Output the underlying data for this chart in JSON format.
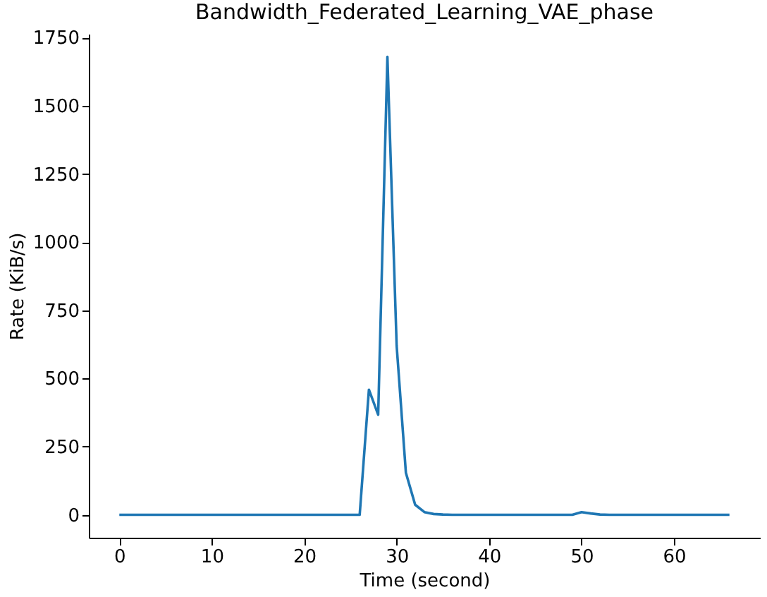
{
  "chart_data": {
    "type": "line",
    "title": "Bandwidth_Federated_Learning_VAE_phase",
    "xlabel": "Time (second)",
    "ylabel": "Rate (KiB/s)",
    "x": [
      0,
      5,
      10,
      15,
      20,
      25,
      26,
      27,
      28,
      29,
      30,
      31,
      32,
      33,
      34,
      35,
      36,
      40,
      45,
      49,
      50,
      51,
      52,
      53,
      55,
      60,
      66
    ],
    "series": [
      {
        "color": "#1f77b4",
        "values": [
          0,
          0,
          0,
          0,
          0,
          0,
          0,
          459,
          367,
          1680,
          620,
          154,
          37,
          10,
          3,
          1,
          0,
          0,
          0,
          0,
          10,
          5,
          1,
          0,
          0,
          0,
          0
        ]
      }
    ],
    "xlim": [
      -3.3,
      69.3
    ],
    "xticks": [
      0,
      10,
      20,
      30,
      40,
      50,
      60
    ],
    "ylim": [
      -84,
      1764
    ],
    "yticks": [
      0,
      250,
      500,
      750,
      1000,
      1250,
      1500,
      1750
    ],
    "grid": false,
    "marker": "none",
    "line_style": "solid"
  }
}
